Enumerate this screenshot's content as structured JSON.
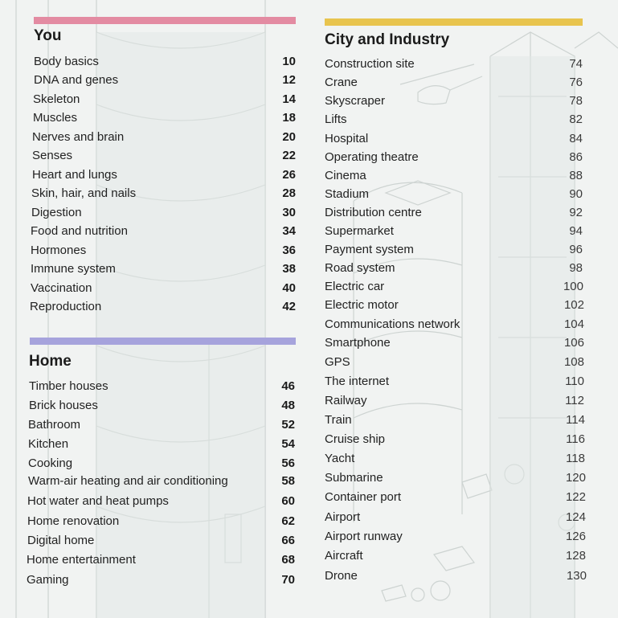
{
  "colors": {
    "you_bar": "#e38ba2",
    "home_bar": "#a6a3dc",
    "city_bar": "#e8c44e",
    "background": "#f1f3f2",
    "line_art": "#c9cfcd"
  },
  "you": {
    "title": "You",
    "items": [
      {
        "label": "Body basics",
        "page": "10"
      },
      {
        "label": "DNA and genes",
        "page": "12"
      },
      {
        "label": "Skeleton",
        "page": "14"
      },
      {
        "label": "Muscles",
        "page": "18"
      },
      {
        "label": "Nerves and brain",
        "page": "20"
      },
      {
        "label": "Senses",
        "page": "22"
      },
      {
        "label": "Heart and lungs",
        "page": "26"
      },
      {
        "label": "Skin, hair, and nails",
        "page": "28"
      },
      {
        "label": "Digestion",
        "page": "30"
      },
      {
        "label": "Food and nutrition",
        "page": "34"
      },
      {
        "label": "Hormones",
        "page": "36"
      },
      {
        "label": "Immune system",
        "page": "38"
      },
      {
        "label": "Vaccination",
        "page": "40"
      },
      {
        "label": "Reproduction",
        "page": "42"
      }
    ]
  },
  "home": {
    "title": "Home",
    "items": [
      {
        "label": "Timber houses",
        "page": "46"
      },
      {
        "label": "Brick houses",
        "page": "48"
      },
      {
        "label": "Bathroom",
        "page": "52"
      },
      {
        "label": "Kitchen",
        "page": "54"
      },
      {
        "label": "Cooking",
        "page": "56"
      },
      {
        "label": "Warm-air heating and air conditioning",
        "page": "58"
      },
      {
        "label": "Hot water and heat pumps",
        "page": "60"
      },
      {
        "label": "Home renovation",
        "page": "62"
      },
      {
        "label": "Digital home",
        "page": "66"
      },
      {
        "label": "Home entertainment",
        "page": "68"
      },
      {
        "label": "Gaming",
        "page": "70"
      }
    ]
  },
  "city": {
    "title": "City and Industry",
    "items": [
      {
        "label": "Construction site",
        "page": "74"
      },
      {
        "label": "Crane",
        "page": "76"
      },
      {
        "label": "Skyscraper",
        "page": "78"
      },
      {
        "label": "Lifts",
        "page": "82"
      },
      {
        "label": "Hospital",
        "page": "84"
      },
      {
        "label": "Operating theatre",
        "page": "86"
      },
      {
        "label": "Cinema",
        "page": "88"
      },
      {
        "label": "Stadium",
        "page": "90"
      },
      {
        "label": "Distribution centre",
        "page": "92"
      },
      {
        "label": "Supermarket",
        "page": "94"
      },
      {
        "label": "Payment system",
        "page": "96"
      },
      {
        "label": "Road system",
        "page": "98"
      },
      {
        "label": "Electric car",
        "page": "100"
      },
      {
        "label": "Electric motor",
        "page": "102"
      },
      {
        "label": "Communications network",
        "page": "104"
      },
      {
        "label": "Smartphone",
        "page": "106"
      },
      {
        "label": "GPS",
        "page": "108"
      },
      {
        "label": "The internet",
        "page": "110"
      },
      {
        "label": "Railway",
        "page": "112"
      },
      {
        "label": "Train",
        "page": "114"
      },
      {
        "label": "Cruise ship",
        "page": "116"
      },
      {
        "label": "Yacht",
        "page": "118"
      },
      {
        "label": "Submarine",
        "page": "120"
      },
      {
        "label": "Container port",
        "page": "122"
      },
      {
        "label": "Airport",
        "page": "124"
      },
      {
        "label": "Airport runway",
        "page": "126"
      },
      {
        "label": "Aircraft",
        "page": "128"
      },
      {
        "label": "Drone",
        "page": "130"
      }
    ]
  }
}
